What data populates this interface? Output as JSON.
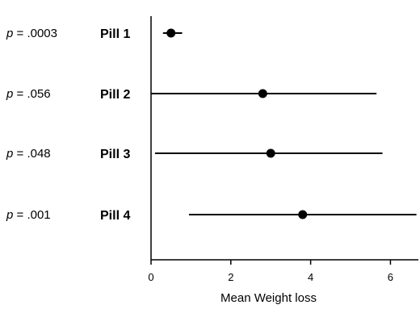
{
  "chart_data": {
    "type": "scatter",
    "variant": "forest-plot",
    "xlabel": "Mean Weight loss",
    "xlim": [
      0,
      6.7
    ],
    "xticks": [
      0,
      2,
      4,
      6
    ],
    "rows": [
      {
        "label": "Pill 1",
        "p_prefix": "p",
        "p_value": " = .0003",
        "mean": 0.5,
        "ci_low": 0.3,
        "ci_high": 0.78
      },
      {
        "label": "Pill 2",
        "p_prefix": "p",
        "p_value": " = .056",
        "mean": 2.8,
        "ci_low": -0.05,
        "ci_high": 5.65
      },
      {
        "label": "Pill 3",
        "p_prefix": "p",
        "p_value": " = .048",
        "mean": 3.0,
        "ci_low": 0.1,
        "ci_high": 5.8
      },
      {
        "label": "Pill 4",
        "p_prefix": "p",
        "p_value": " = .001",
        "mean": 3.8,
        "ci_low": 0.95,
        "ci_high": 6.65
      }
    ]
  }
}
